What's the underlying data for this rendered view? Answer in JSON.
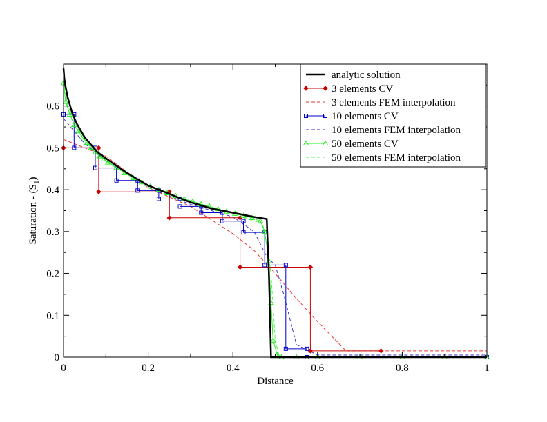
{
  "chart_data": {
    "type": "line",
    "title": "",
    "xlabel": "Distance",
    "ylabel_main": "Saturation  - (S",
    "ylabel_sub": "1",
    "ylabel_close": ")",
    "xlim": [
      0,
      1
    ],
    "ylim": [
      0,
      0.7
    ],
    "x_ticks": [
      "0",
      "0.2",
      "0.4",
      "0.6",
      "0.8",
      "1"
    ],
    "x_tick_values": [
      0,
      0.2,
      0.4,
      0.6,
      0.8,
      1.0
    ],
    "y_ticks": [
      "0",
      "0.1",
      "0.2",
      "0.3",
      "0.4",
      "0.5",
      "0.6"
    ],
    "y_tick_values": [
      0,
      0.1,
      0.2,
      0.3,
      0.4,
      0.5,
      0.6
    ],
    "legend_position": "top-right",
    "series": [
      {
        "name": "analytic solution",
        "color": "#000000",
        "style": "solid-thick",
        "marker": "none",
        "x": [
          0,
          0.002,
          0.005,
          0.01,
          0.02,
          0.03,
          0.05,
          0.08,
          0.1,
          0.15,
          0.2,
          0.25,
          0.3,
          0.35,
          0.4,
          0.45,
          0.48,
          0.485,
          0.49,
          0.5,
          1.0
        ],
        "y": [
          0.69,
          0.665,
          0.645,
          0.62,
          0.585,
          0.56,
          0.525,
          0.49,
          0.475,
          0.44,
          0.41,
          0.39,
          0.37,
          0.355,
          0.345,
          0.335,
          0.33,
          0.2,
          0.0,
          0.0,
          0.0
        ]
      },
      {
        "name": "3 elements CV",
        "color": "#cc0000",
        "style": "solid",
        "marker": "diamond",
        "x": [
          0,
          0.083,
          0.083,
          0.25,
          0.25,
          0.417,
          0.417,
          0.583,
          0.583,
          0.75
        ],
        "y": [
          0.5,
          0.5,
          0.395,
          0.395,
          0.333,
          0.333,
          0.215,
          0.215,
          0.015,
          0.015
        ]
      },
      {
        "name": "3 elements FEM interpolation",
        "color": "#ee3333",
        "style": "dashed",
        "marker": "none",
        "x": [
          0,
          0.1,
          0.2,
          0.3,
          0.4,
          0.45,
          0.5,
          0.55,
          0.6,
          0.667,
          1.0
        ],
        "y": [
          0.52,
          0.48,
          0.405,
          0.36,
          0.295,
          0.255,
          0.2,
          0.14,
          0.085,
          0.015,
          0.015
        ]
      },
      {
        "name": "10 elements CV",
        "color": "#0000cc",
        "style": "solid",
        "marker": "square",
        "x": [
          0,
          0.025,
          0.025,
          0.075,
          0.075,
          0.125,
          0.125,
          0.175,
          0.175,
          0.225,
          0.225,
          0.275,
          0.275,
          0.325,
          0.325,
          0.375,
          0.375,
          0.425,
          0.425,
          0.475,
          0.475,
          0.525,
          0.525,
          0.575,
          0.575,
          1.0
        ],
        "y": [
          0.58,
          0.58,
          0.5,
          0.5,
          0.452,
          0.452,
          0.422,
          0.422,
          0.398,
          0.398,
          0.378,
          0.378,
          0.36,
          0.36,
          0.345,
          0.345,
          0.325,
          0.325,
          0.298,
          0.298,
          0.22,
          0.22,
          0.02,
          0.02,
          0.0,
          0.0
        ]
      },
      {
        "name": "10 elements FEM interpolation",
        "color": "#3333cc",
        "style": "dashed",
        "marker": "none",
        "x": [
          0,
          0.05,
          0.1,
          0.2,
          0.3,
          0.4,
          0.45,
          0.48,
          0.5,
          0.52,
          0.55,
          0.6,
          1.0
        ],
        "y": [
          0.57,
          0.51,
          0.47,
          0.405,
          0.365,
          0.335,
          0.3,
          0.24,
          0.22,
          0.15,
          0.03,
          0.005,
          0.005
        ]
      },
      {
        "name": "50 elements CV",
        "color": "#22ee22",
        "style": "solid",
        "marker": "triangle",
        "x": [
          0,
          0.005,
          0.015,
          0.025,
          0.035,
          0.045,
          0.055,
          0.065,
          0.075,
          0.085,
          0.095,
          0.105,
          0.125,
          0.145,
          0.165,
          0.185,
          0.205,
          0.225,
          0.245,
          0.265,
          0.285,
          0.305,
          0.325,
          0.345,
          0.365,
          0.385,
          0.405,
          0.425,
          0.445,
          0.465,
          0.475,
          0.485,
          0.49,
          0.495,
          0.505,
          0.515,
          0.55,
          0.6,
          0.7,
          0.8,
          0.9,
          1.0
        ],
        "y": [
          0.655,
          0.61,
          0.58,
          0.555,
          0.54,
          0.525,
          0.512,
          0.5,
          0.49,
          0.48,
          0.473,
          0.465,
          0.452,
          0.44,
          0.428,
          0.418,
          0.408,
          0.4,
          0.392,
          0.385,
          0.378,
          0.372,
          0.365,
          0.36,
          0.354,
          0.348,
          0.343,
          0.338,
          0.333,
          0.325,
          0.3,
          0.23,
          0.13,
          0.04,
          0.005,
          0.0,
          0.0,
          0.0,
          0.0,
          0.0,
          0.0,
          0.0
        ]
      },
      {
        "name": "50 elements FEM interpolation",
        "color": "#55ee55",
        "style": "dashed",
        "marker": "none",
        "x": [
          0,
          0.01,
          0.05,
          0.1,
          0.2,
          0.3,
          0.4,
          0.47,
          0.48,
          0.49,
          0.5,
          0.51,
          1.0
        ],
        "y": [
          0.66,
          0.6,
          0.52,
          0.47,
          0.405,
          0.37,
          0.34,
          0.32,
          0.27,
          0.2,
          0.04,
          0.0,
          0.0
        ]
      }
    ]
  }
}
